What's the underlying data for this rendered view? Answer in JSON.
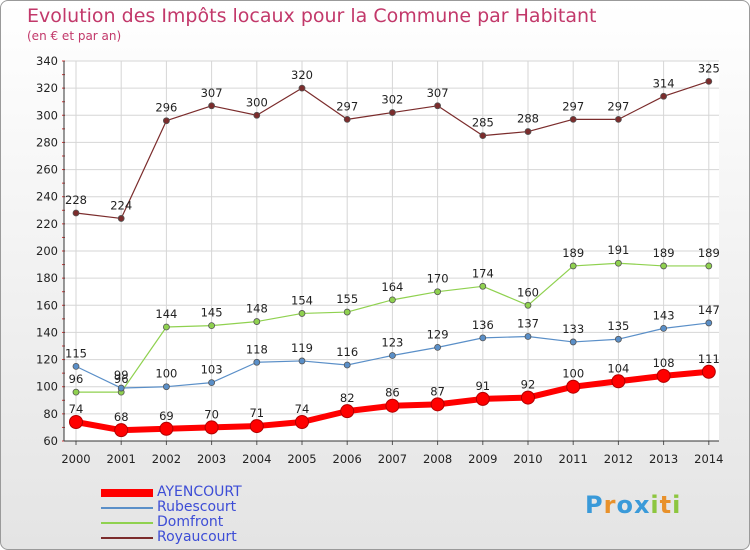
{
  "header": {
    "title": "Evolution des Impôts locaux pour la Commune par Habitant",
    "subtitle": "(en € et par an)"
  },
  "logo": {
    "text": "Proxiti",
    "colors": [
      "#3a9ad9",
      "#e8912b",
      "#3a9ad9",
      "#3a9ad9",
      "#8dc63f",
      "#e8912b",
      "#8dc63f"
    ]
  },
  "chart_data": {
    "type": "line",
    "x": [
      "2000",
      "2001",
      "2002",
      "2003",
      "2004",
      "2005",
      "2006",
      "2007",
      "2008",
      "2009",
      "2010",
      "2011",
      "2012",
      "2013",
      "2014"
    ],
    "ylim": [
      60,
      340
    ],
    "yticks": [
      60,
      80,
      100,
      120,
      140,
      160,
      180,
      200,
      220,
      240,
      260,
      280,
      300,
      320,
      340
    ],
    "grid": true,
    "legend_position": "bottom-left",
    "series": [
      {
        "name": "AYENCOURT",
        "color": "#ff0000",
        "values": [
          74,
          68,
          69,
          70,
          71,
          74,
          82,
          86,
          87,
          91,
          92,
          100,
          104,
          108,
          111
        ]
      },
      {
        "name": "Rubescourt",
        "color": "#5a8fc8",
        "values": [
          115,
          99,
          100,
          103,
          118,
          119,
          116,
          123,
          129,
          136,
          137,
          133,
          135,
          143,
          147
        ]
      },
      {
        "name": "Domfront",
        "color": "#8fd14f",
        "values": [
          96,
          96,
          144,
          145,
          148,
          154,
          155,
          164,
          170,
          174,
          160,
          189,
          191,
          189,
          189
        ]
      },
      {
        "name": "Royaucourt",
        "color": "#7b2c2c",
        "values": [
          228,
          224,
          296,
          307,
          300,
          320,
          297,
          302,
          307,
          285,
          288,
          297,
          297,
          314,
          325
        ]
      }
    ]
  }
}
